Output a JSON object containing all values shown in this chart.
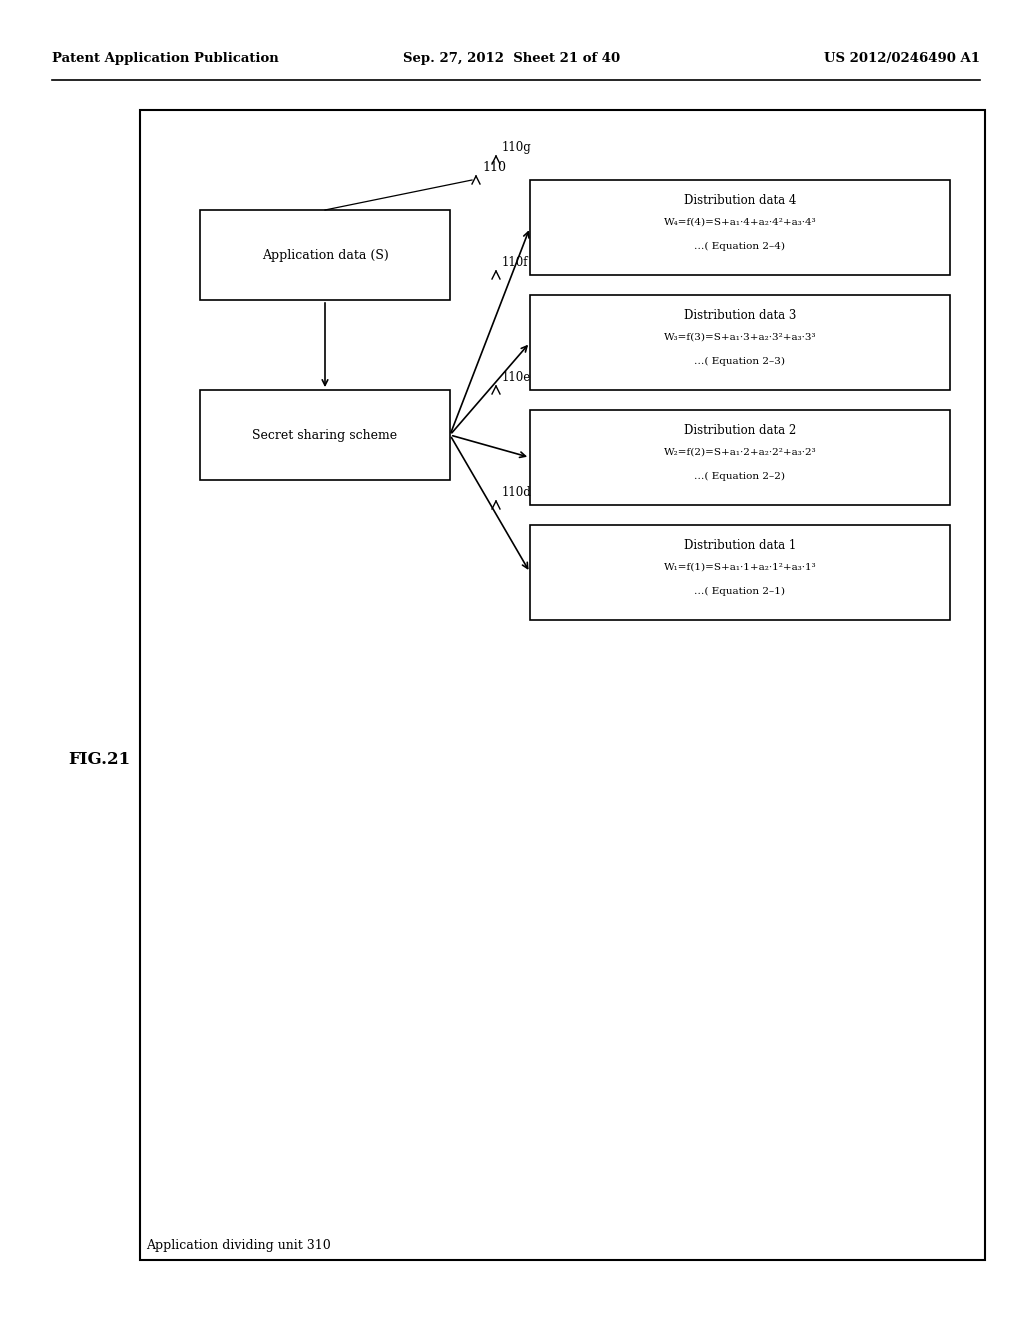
{
  "bg_color": "#ffffff",
  "header_left": "Patent Application Publication",
  "header_mid": "Sep. 27, 2012  Sheet 21 of 40",
  "header_right": "US 2012/0246490 A1",
  "fig_label": "FIG.21",
  "outer_box_label": "Application dividing unit 310",
  "ref_110": "110",
  "app_data_box": {
    "label": "Application data (S)"
  },
  "secret_box": {
    "label": "Secret sharing scheme"
  },
  "dist_boxes": [
    {
      "ref": "110d",
      "title": "Distribution data 1",
      "line1": "W₁=f(1)=S+a₁·1+a₂·1²+a₃·1³",
      "line2": "…( Equation 2–1)"
    },
    {
      "ref": "110e",
      "title": "Distribution data 2",
      "line1": "W₂=f(2)=S+a₁·2+a₂·2²+a₃·2³",
      "line2": "…( Equation 2–2)"
    },
    {
      "ref": "110f",
      "title": "Distribution data 3",
      "line1": "W₃=f(3)=S+a₁·3+a₂·3²+a₃·3³",
      "line2": "…( Equation 2–3)"
    },
    {
      "ref": "110g",
      "title": "Distribution data 4",
      "line1": "W₄=f(4)=S+a₁·4+a₂·4²+a₃·4³",
      "line2": "…( Equation 2–4)"
    }
  ]
}
